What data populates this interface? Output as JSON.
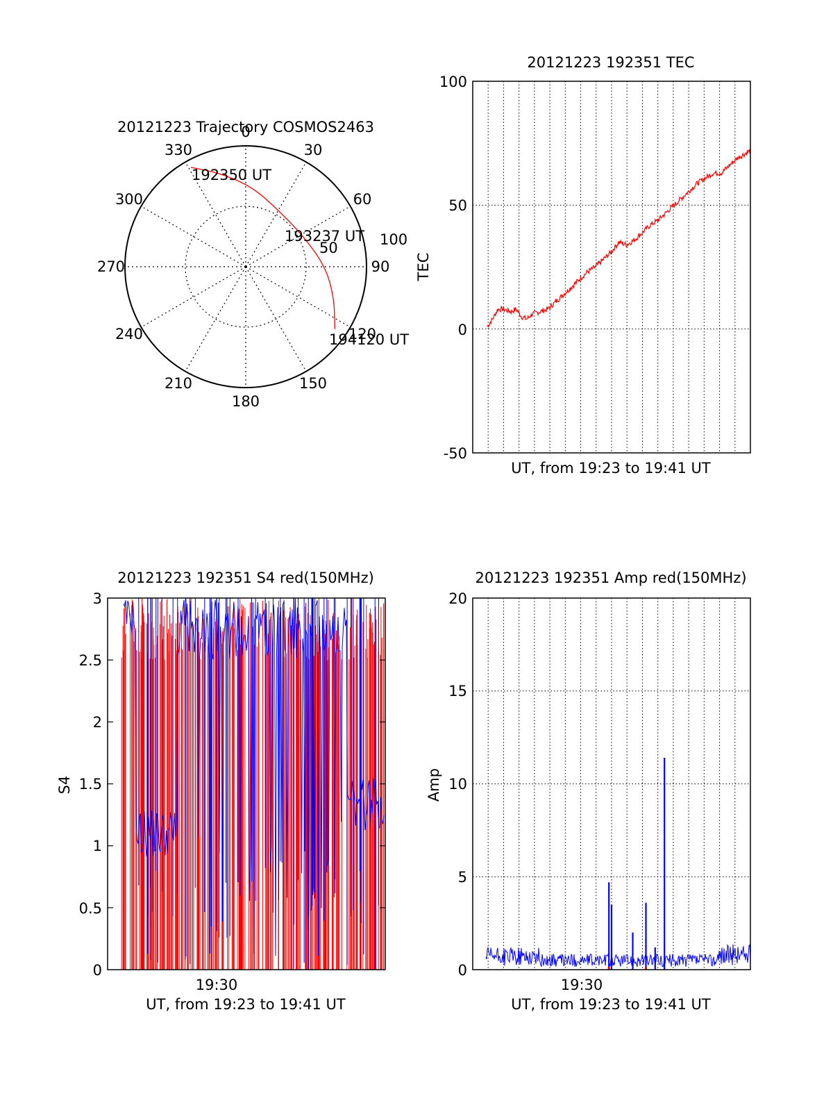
{
  "colors": {
    "series_red": "#ff0000",
    "series_blue": "#0000ff",
    "axis": "#000000"
  },
  "chart_data": [
    {
      "id": "trajectory",
      "type": "polar",
      "title": "20121223 Trajectory COSMOS2463",
      "azimuth_labels": [
        "0",
        "30",
        "60",
        "90",
        "120",
        "150",
        "180",
        "210",
        "240",
        "270",
        "300",
        "330"
      ],
      "radial_labels": [
        "50",
        "100"
      ],
      "track": {
        "color": "#ff0000",
        "points": [
          {
            "az": 331,
            "r": 94
          },
          {
            "az": 345,
            "r": 80
          },
          {
            "az": 5,
            "r": 66
          },
          {
            "az": 30,
            "r": 54
          },
          {
            "az": 62,
            "r": 54
          },
          {
            "az": 90,
            "r": 66
          },
          {
            "az": 110,
            "r": 78
          },
          {
            "az": 125,
            "r": 90
          }
        ]
      },
      "annotations": [
        "192350 UT",
        "193237 UT",
        "194120 UT"
      ]
    },
    {
      "id": "tec",
      "type": "line",
      "title": "20121223 192351 TEC",
      "xlabel": "UT, from 19:23 to 19:41 UT",
      "ylabel": "TEC",
      "ylim": [
        -50,
        100
      ],
      "yticks": [
        "100",
        "50",
        "0",
        "-50"
      ],
      "grid": true,
      "series": [
        {
          "color": "#ff0000",
          "points": [
            [
              0.0,
              1
            ],
            [
              0.02,
              4
            ],
            [
              0.04,
              8
            ],
            [
              0.06,
              8
            ],
            [
              0.09,
              7
            ],
            [
              0.11,
              8
            ],
            [
              0.13,
              5
            ],
            [
              0.15,
              4
            ],
            [
              0.17,
              6
            ],
            [
              0.2,
              7
            ],
            [
              0.23,
              8
            ],
            [
              0.26,
              11
            ],
            [
              0.29,
              14
            ],
            [
              0.32,
              17
            ],
            [
              0.35,
              20
            ],
            [
              0.38,
              23
            ],
            [
              0.41,
              25
            ],
            [
              0.44,
              28
            ],
            [
              0.47,
              31
            ],
            [
              0.5,
              35
            ],
            [
              0.53,
              34
            ],
            [
              0.56,
              36
            ],
            [
              0.59,
              39
            ],
            [
              0.62,
              42
            ],
            [
              0.65,
              44
            ],
            [
              0.68,
              47
            ],
            [
              0.71,
              50
            ],
            [
              0.74,
              53
            ],
            [
              0.77,
              56
            ],
            [
              0.8,
              59
            ],
            [
              0.83,
              61
            ],
            [
              0.86,
              63
            ],
            [
              0.89,
              63
            ],
            [
              0.92,
              66
            ],
            [
              0.95,
              69
            ],
            [
              1.0,
              72
            ]
          ]
        }
      ]
    },
    {
      "id": "s4",
      "type": "line",
      "title": "20121223 192351 S4 red(150MHz)",
      "xlabel": "UT, from 19:23 to 19:41 UT",
      "ylabel": "S4",
      "xtick": "19:30",
      "ylim": [
        0,
        3
      ],
      "yticks": [
        "3",
        "2.5",
        "2",
        "1.5",
        "1",
        "0.5",
        "0"
      ],
      "series": [
        {
          "color": "#ff0000",
          "name": ""
        },
        {
          "color": "#0000ff",
          "name": ""
        }
      ]
    },
    {
      "id": "amp",
      "type": "line",
      "title": "20121223 192351 Amp red(150MHz)",
      "xlabel": "UT, from 19:23 to 19:41 UT",
      "ylabel": "Amp",
      "xtick": "19:30",
      "ylim": [
        0,
        20
      ],
      "yticks": [
        "20",
        "15",
        "10",
        "5",
        "0"
      ],
      "grid": true,
      "spikes": [
        {
          "x": 0.465,
          "value": 4.7
        },
        {
          "x": 0.475,
          "value": 3.5
        },
        {
          "x": 0.555,
          "value": 2.0
        },
        {
          "x": 0.605,
          "value": 3.6
        },
        {
          "x": 0.64,
          "value": 1.2
        },
        {
          "x": 0.675,
          "value": 11.4
        }
      ],
      "baseline": 0.5
    }
  ]
}
